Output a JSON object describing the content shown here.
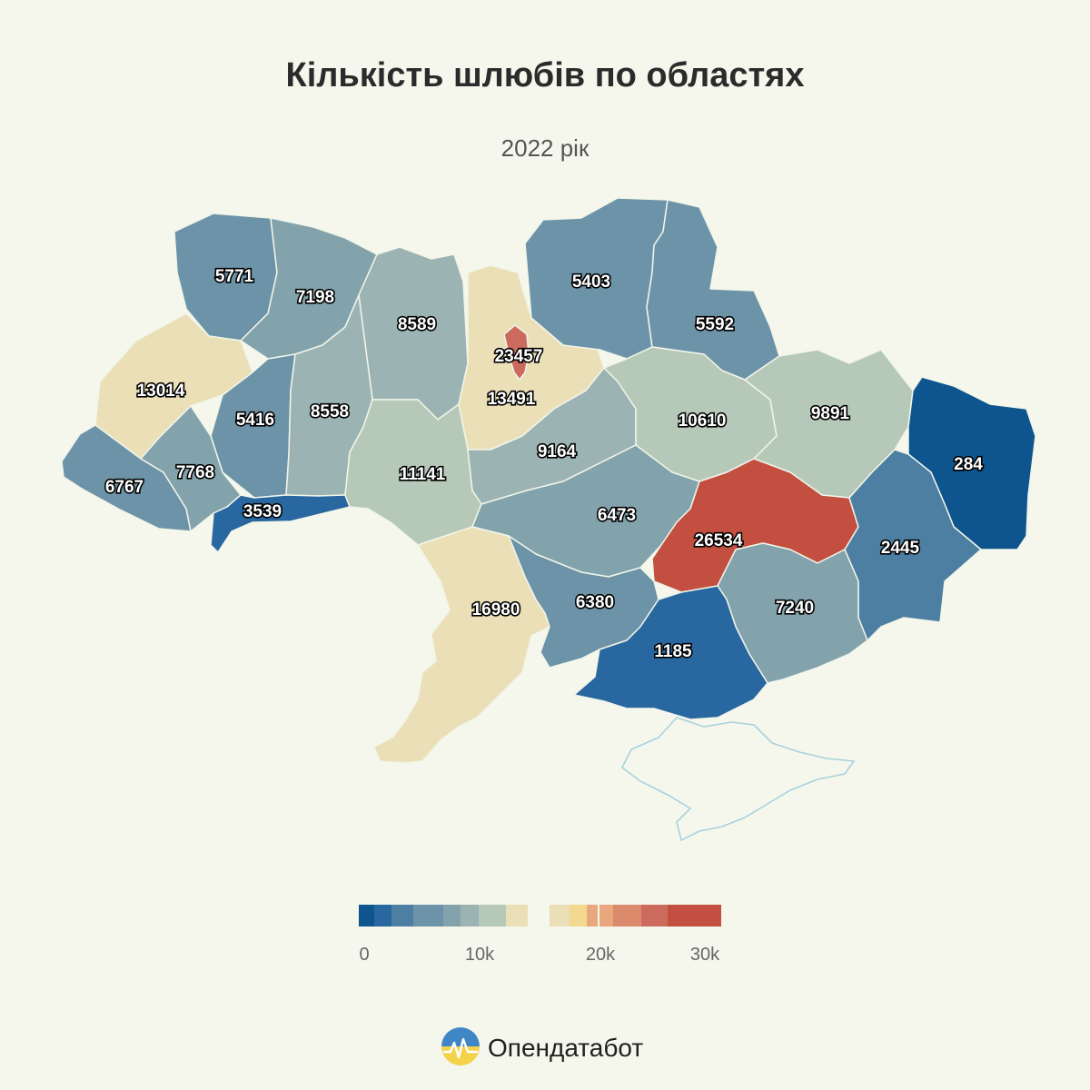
{
  "header": {
    "title": "Кількість шлюбів по областях",
    "subtitle": "2022 рік"
  },
  "palette": [
    "#0e5590",
    "#2967a0",
    "#4d7fa3",
    "#6d93a8",
    "#82a3ac",
    "#9cb3b4",
    "#b6c9b8",
    "#ebdfb8",
    "#f3d98f",
    "#e8a77c",
    "#dc8a6c",
    "#cc6b5d",
    "#c24f3f"
  ],
  "regions": [
    {
      "id": "volyn",
      "value": "5771"
    },
    {
      "id": "rivne",
      "value": "7198"
    },
    {
      "id": "zhytomyr",
      "value": "8589"
    },
    {
      "id": "kyiv-city",
      "value": "23457"
    },
    {
      "id": "kyiv-oblast",
      "value": "13491"
    },
    {
      "id": "chernihiv",
      "value": "5403"
    },
    {
      "id": "sumy",
      "value": "5592"
    },
    {
      "id": "lviv",
      "value": "13014"
    },
    {
      "id": "ternopil",
      "value": "5416"
    },
    {
      "id": "khmelnytskyi",
      "value": "8558"
    },
    {
      "id": "zakarpattia",
      "value": "6767"
    },
    {
      "id": "ivano-frankivsk",
      "value": "7768"
    },
    {
      "id": "chernivtsi",
      "value": "3539"
    },
    {
      "id": "vinnytsia",
      "value": "11141"
    },
    {
      "id": "cherkasy",
      "value": "9164"
    },
    {
      "id": "poltava",
      "value": "10610"
    },
    {
      "id": "kharkiv",
      "value": "9891"
    },
    {
      "id": "luhansk",
      "value": "284"
    },
    {
      "id": "kirovohrad",
      "value": "6473"
    },
    {
      "id": "dnipropetrovsk",
      "value": "26534"
    },
    {
      "id": "donetsk",
      "value": "2445"
    },
    {
      "id": "odesa",
      "value": "16980"
    },
    {
      "id": "mykolaiv",
      "value": "6380"
    },
    {
      "id": "zaporizhzhia",
      "value": "7240"
    },
    {
      "id": "kherson",
      "value": "1185"
    }
  ],
  "legend": {
    "ticks": [
      "0",
      "10k",
      "20k",
      "30k"
    ]
  },
  "brand": {
    "name": "Опендатабот",
    "icon": "opendatabot-logo-icon"
  }
}
